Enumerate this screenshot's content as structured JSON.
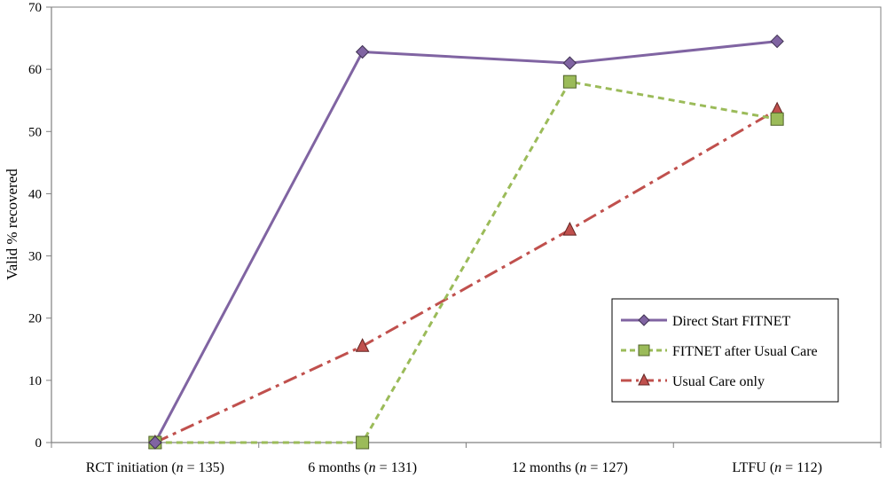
{
  "chart_data": {
    "type": "line",
    "title": "",
    "xlabel": "",
    "ylabel": "Valid % recovered",
    "ylim": [
      0,
      70
    ],
    "yticks": [
      0,
      10,
      20,
      30,
      40,
      50,
      60,
      70
    ],
    "grid": false,
    "legend_position": "bottom-right",
    "categories": [
      {
        "label": "RCT initiation",
        "n": "135"
      },
      {
        "label": "6 months",
        "n": "131"
      },
      {
        "label": "12 months",
        "n": "127"
      },
      {
        "label": "LTFU",
        "n": "112"
      }
    ],
    "series": [
      {
        "name": "Direct Start FITNET",
        "values": [
          0,
          62.8,
          61.0,
          64.5
        ],
        "color": "#8064a2",
        "marker": "diamond",
        "line_style": "solid"
      },
      {
        "name": "FITNET after Usual Care",
        "values": [
          0,
          0,
          58.0,
          52.0
        ],
        "color": "#9bbb59",
        "marker": "square",
        "line_style": "dashed"
      },
      {
        "name": "Usual Care only",
        "values": [
          0,
          15.5,
          34.2,
          53.5
        ],
        "color": "#c0504d",
        "marker": "triangle",
        "line_style": "dashdot"
      }
    ]
  }
}
